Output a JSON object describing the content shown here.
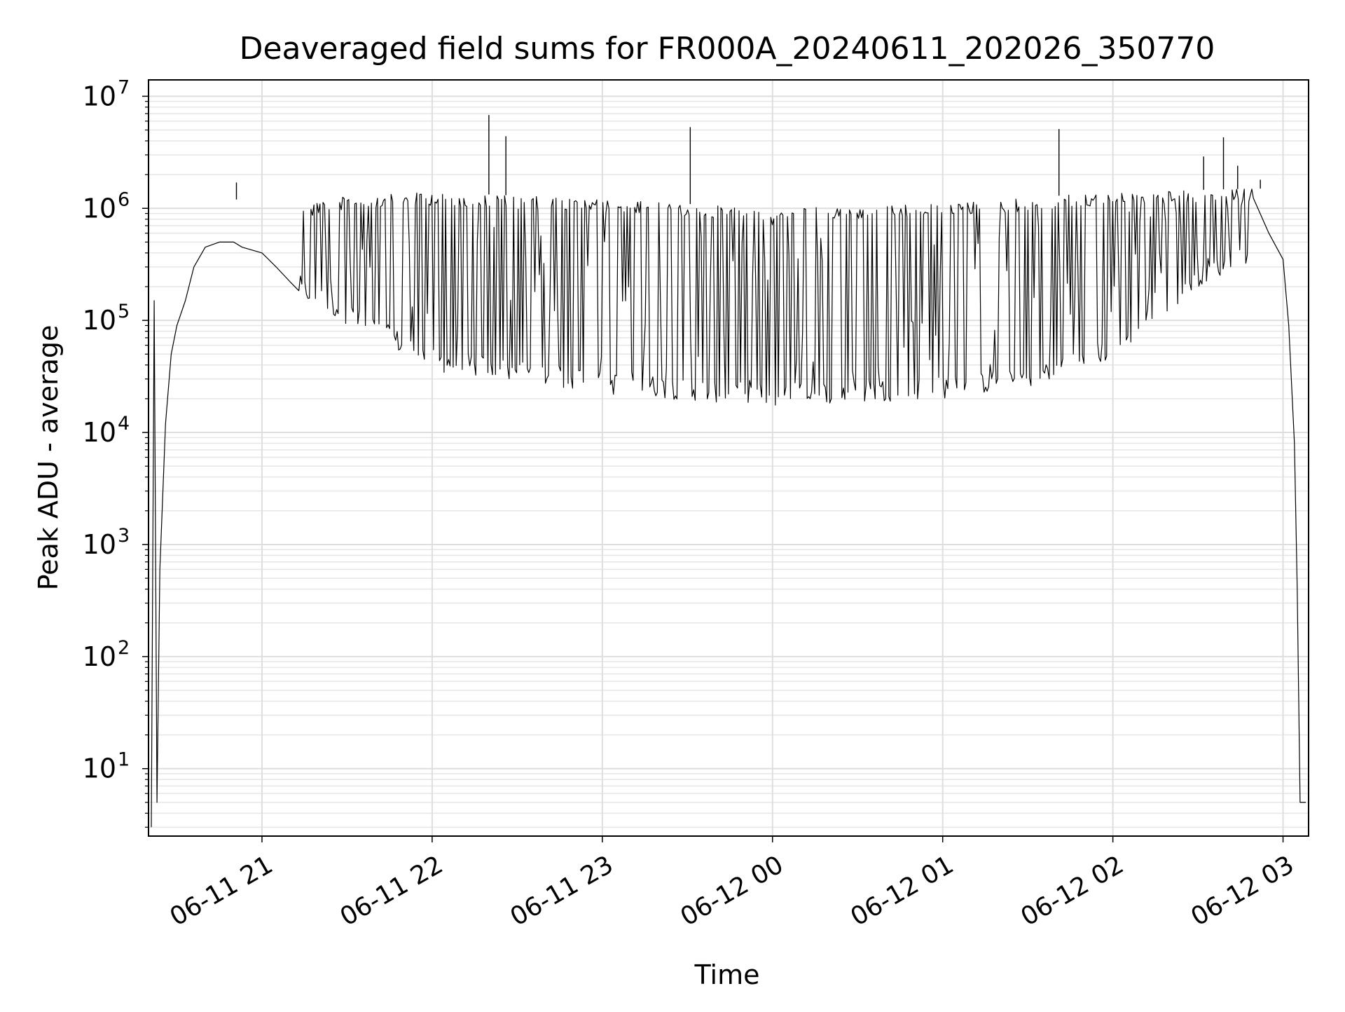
{
  "chart_data": {
    "type": "line",
    "title": "Deaveraged field sums for FR000A_20240611_202026_350770",
    "xlabel": "Time",
    "ylabel": "Peak ADU - average",
    "xscale": "time",
    "yscale": "log",
    "xlim": [
      "2024-06-11 20:20",
      "2024-06-12 03:09"
    ],
    "ylim": [
      2.5,
      14000000
    ],
    "x_ticks": [
      "06-11 21",
      "06-11 22",
      "06-11 23",
      "06-12 00",
      "06-12 01",
      "06-12 02",
      "06-12 03"
    ],
    "x_tick_times": [
      "2024-06-11 21:00",
      "2024-06-11 22:00",
      "2024-06-11 23:00",
      "2024-06-12 00:00",
      "2024-06-12 01:00",
      "2024-06-12 02:00",
      "2024-06-12 03:00"
    ],
    "y_tick_labels": [
      {
        "base": "10",
        "exp": "1",
        "value": 10
      },
      {
        "base": "10",
        "exp": "2",
        "value": 100
      },
      {
        "base": "10",
        "exp": "3",
        "value": 1000
      },
      {
        "base": "10",
        "exp": "4",
        "value": 10000
      },
      {
        "base": "10",
        "exp": "5",
        "value": 100000
      },
      {
        "base": "10",
        "exp": "6",
        "value": 1000000
      },
      {
        "base": "10",
        "exp": "7",
        "value": 10000000
      }
    ],
    "grid": true,
    "grid_minor": true,
    "line_color": "#000000",
    "series": [
      {
        "x": [
          "2024-06-11 20:21",
          "2024-06-11 20:22",
          "2024-06-11 20:23",
          "2024-06-11 20:24",
          "2024-06-11 20:26",
          "2024-06-11 20:28",
          "2024-06-11 20:30",
          "2024-06-11 20:33",
          "2024-06-11 20:36",
          "2024-06-11 20:40",
          "2024-06-11 20:45",
          "2024-06-11 20:50",
          "2024-06-11 20:53",
          "2024-06-11 21:00",
          "2024-06-11 21:05",
          "2024-06-11 21:10",
          "2024-06-11 21:15",
          "2024-06-11 21:20",
          "2024-06-11 21:30",
          "2024-06-11 21:40",
          "2024-06-11 21:50",
          "2024-06-11 22:00",
          "2024-06-11 22:10",
          "2024-06-11 22:30",
          "2024-06-11 23:00",
          "2024-06-11 23:30",
          "2024-06-12 00:00",
          "2024-06-12 00:30",
          "2024-06-12 01:00",
          "2024-06-12 01:30",
          "2024-06-12 02:00",
          "2024-06-12 02:30",
          "2024-06-12 02:45",
          "2024-06-12 02:55",
          "2024-06-12 03:00",
          "2024-06-12 03:02",
          "2024-06-12 03:04",
          "2024-06-12 03:05",
          "2024-06-12 03:06",
          "2024-06-12 03:07",
          "2024-06-12 03:08"
        ],
        "y": [
          3,
          150000,
          5,
          600,
          12000,
          50000,
          90000,
          150000,
          300000,
          450000,
          500000,
          500000,
          450000,
          400000,
          300000,
          220000,
          180000,
          170000,
          120000,
          70000,
          45000,
          38000,
          600000,
          900000,
          800000,
          700000,
          650000,
          600000,
          600000,
          650000,
          750000,
          850000,
          500000,
          600000,
          350000,
          90000,
          8000,
          400,
          5,
          5,
          5
        ],
        "oscillation": {
          "start": "2024-06-11 21:13",
          "end": "2024-06-12 02:50",
          "upper_envelope": [
            [
              "2024-06-11 21:13",
              1200000
            ],
            [
              "2024-06-11 22:00",
              1400000
            ],
            [
              "2024-06-11 23:00",
              1200000
            ],
            [
              "2024-06-12 00:00",
              1000000
            ],
            [
              "2024-06-12 01:00",
              1100000
            ],
            [
              "2024-06-12 02:00",
              1400000
            ],
            [
              "2024-06-12 02:50",
              1500000
            ]
          ],
          "lower_envelope": [
            [
              "2024-06-11 21:13",
              160000
            ],
            [
              "2024-06-11 22:00",
              35000
            ],
            [
              "2024-06-11 22:30",
              28000
            ],
            [
              "2024-06-11 23:00",
              22000
            ],
            [
              "2024-06-12 00:00",
              17000
            ],
            [
              "2024-06-12 01:00",
              20000
            ],
            [
              "2024-06-12 01:30",
              25000
            ],
            [
              "2024-06-12 02:00",
              45000
            ],
            [
              "2024-06-12 02:30",
              200000
            ],
            [
              "2024-06-12 02:50",
              350000
            ]
          ]
        },
        "spikes": [
          {
            "x": "2024-06-11 20:51",
            "y": 1700000
          },
          {
            "x": "2024-06-11 22:20",
            "y": 6800000
          },
          {
            "x": "2024-06-11 22:26",
            "y": 4400000
          },
          {
            "x": "2024-06-11 23:31",
            "y": 5300000
          },
          {
            "x": "2024-06-12 01:41",
            "y": 5100000
          },
          {
            "x": "2024-06-12 02:32",
            "y": 2900000
          },
          {
            "x": "2024-06-12 02:39",
            "y": 4300000
          },
          {
            "x": "2024-06-12 02:44",
            "y": 2400000
          },
          {
            "x": "2024-06-12 02:52",
            "y": 1800000
          }
        ]
      }
    ]
  }
}
